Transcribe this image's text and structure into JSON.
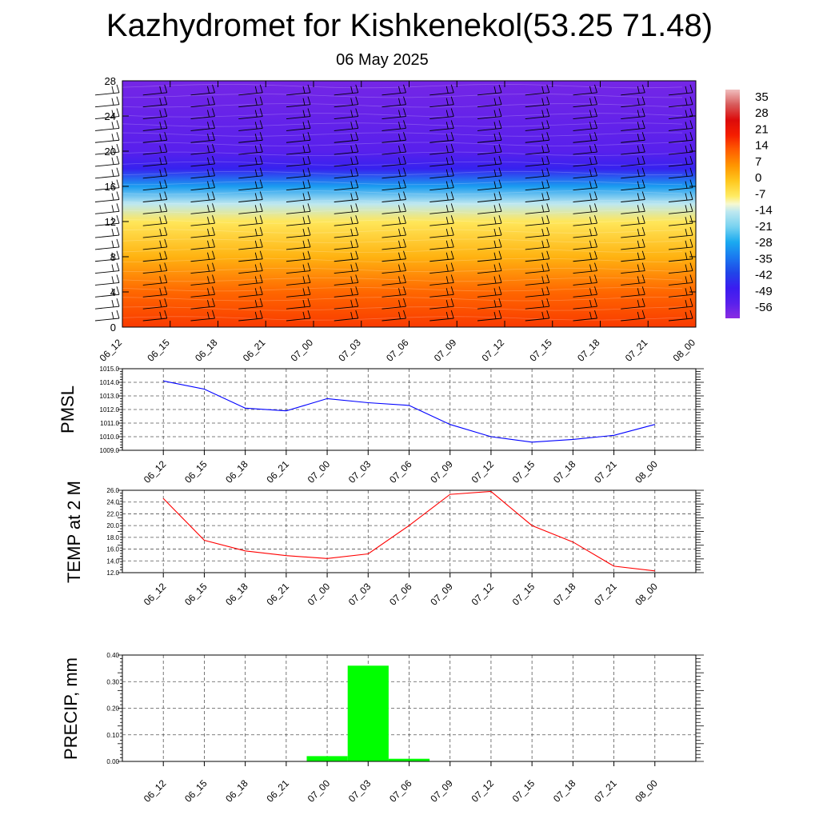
{
  "title": "Kazhydromet for Kishkenekol(53.25 71.48)",
  "date": "06 May 2025",
  "time_labels": [
    "06_12",
    "06_15",
    "06_18",
    "06_21",
    "07_00",
    "07_03",
    "07_06",
    "07_09",
    "07_12",
    "07_15",
    "07_18",
    "07_21",
    "08_00"
  ],
  "chart_data": [
    {
      "type": "heatmap",
      "title": "",
      "ylabel": "",
      "y_ticks": [
        "0",
        "4",
        "8",
        "12",
        "16",
        "20",
        "24",
        "28"
      ],
      "ylim": [
        0,
        28
      ],
      "x": [
        "06_12",
        "06_15",
        "06_18",
        "06_21",
        "07_00",
        "07_03",
        "07_06",
        "07_09",
        "07_12",
        "07_15",
        "07_18",
        "07_21",
        "08_00"
      ],
      "colorbar_ticks": [
        "35",
        "28",
        "21",
        "14",
        "7",
        "0",
        "-7",
        "-14",
        "-21",
        "-28",
        "-35",
        "-42",
        "-49",
        "-56"
      ],
      "colorbar_range": [
        -63,
        42
      ],
      "colorbar_colors": [
        "#8a2be2",
        "#3a1cf0",
        "#2046e8",
        "#1aa0f0",
        "#a0dcf0",
        "#fffacd",
        "#ffe040",
        "#ffb000",
        "#ff7000",
        "#ff2a00",
        "#e00000",
        "#d44040",
        "#f0b8b8"
      ],
      "vertical_profile_temp": [
        {
          "level": 0,
          "temp": 18
        },
        {
          "level": 4,
          "temp": 13
        },
        {
          "level": 8,
          "temp": 3
        },
        {
          "level": 12,
          "temp": -6
        },
        {
          "level": 14,
          "temp": -14
        },
        {
          "level": 16,
          "temp": -30
        },
        {
          "level": 18,
          "temp": -48
        },
        {
          "level": 20,
          "temp": -56
        },
        {
          "level": 24,
          "temp": -58
        },
        {
          "level": 28,
          "temp": -60
        }
      ],
      "wind_barbs": true,
      "grid": false
    },
    {
      "type": "line",
      "ylabel": "PMSL",
      "x": [
        "06_12",
        "06_15",
        "06_18",
        "06_21",
        "07_00",
        "07_03",
        "07_06",
        "07_09",
        "07_12",
        "07_15",
        "07_18",
        "07_21",
        "08_00"
      ],
      "series": [
        {
          "values": [
            1014.1,
            1013.5,
            1012.1,
            1011.9,
            1012.8,
            1012.5,
            1012.3,
            1010.9,
            1010.0,
            1009.6,
            1009.8,
            1010.1,
            1010.9
          ]
        }
      ],
      "ylim": [
        1009.0,
        1015.0
      ],
      "y_ticks": [
        "1009.0",
        "1010.0",
        "1011.0",
        "1012.0",
        "1013.0",
        "1014.0",
        "1015.0"
      ],
      "color": "#0000ff",
      "grid": true
    },
    {
      "type": "line",
      "ylabel": "TEMP at 2 M",
      "x": [
        "06_12",
        "06_15",
        "06_18",
        "06_21",
        "07_00",
        "07_03",
        "07_06",
        "07_09",
        "07_12",
        "07_15",
        "07_18",
        "07_21",
        "08_00"
      ],
      "series": [
        {
          "values": [
            24.6,
            17.5,
            15.7,
            14.9,
            14.4,
            15.2,
            20.0,
            25.3,
            25.8,
            20.0,
            17.2,
            13.1,
            12.3
          ]
        }
      ],
      "ylim": [
        12.0,
        26.0
      ],
      "y_ticks": [
        "12.0",
        "14.0",
        "16.0",
        "18.0",
        "20.0",
        "22.0",
        "24.0",
        "26.0"
      ],
      "color": "#ff0000",
      "grid": true
    },
    {
      "type": "bar",
      "ylabel": "PRECIP, mm",
      "x": [
        "06_12",
        "06_15",
        "06_18",
        "06_21",
        "07_00",
        "07_03",
        "07_06",
        "07_09",
        "07_12",
        "07_15",
        "07_18",
        "07_21",
        "08_00"
      ],
      "values": [
        0,
        0,
        0,
        0,
        0.02,
        0.36,
        0.01,
        0,
        0,
        0,
        0,
        0,
        0
      ],
      "ylim": [
        0,
        0.4
      ],
      "y_ticks": [
        "0.00",
        "0.10",
        "0.20",
        "0.30",
        "0.40"
      ],
      "color": "#00ff00",
      "grid": true
    }
  ]
}
